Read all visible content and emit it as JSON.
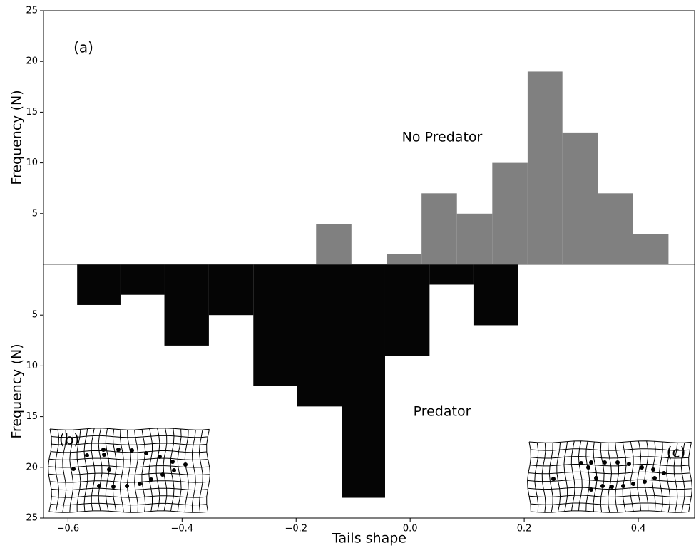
{
  "chart_data": [
    {
      "type": "histogram",
      "ylabel": "Frequency (N)",
      "color": "#808080",
      "bins": [
        -0.165,
        -0.103,
        -0.041,
        0.02,
        0.082,
        0.144,
        0.206,
        0.267,
        0.329,
        0.391,
        0.453
      ],
      "values": [
        4,
        0,
        1,
        7,
        5,
        10,
        19,
        13,
        7,
        3
      ],
      "xlim": [
        -0.643,
        0.5
      ],
      "ylim": [
        0,
        25
      ],
      "yticks": [
        5,
        10,
        15,
        20,
        25
      ],
      "annotations": [
        "(a)",
        "No Predator"
      ]
    },
    {
      "type": "histogram",
      "ylabel": "Frequency (N)",
      "xlabel": "Tails shape",
      "color": "#050505",
      "inverted": true,
      "bins": [
        -0.584,
        -0.508,
        -0.431,
        -0.353,
        -0.275,
        -0.198,
        -0.12,
        -0.044,
        0.034,
        0.111,
        0.189
      ],
      "values": [
        4,
        3,
        8,
        5,
        12,
        14,
        23,
        9,
        2,
        6
      ],
      "xlim": [
        -0.643,
        0.5
      ],
      "ylim": [
        0,
        25
      ],
      "yticks": [
        5,
        10,
        15,
        20,
        25
      ],
      "xticks": [
        {
          "value": -0.6,
          "label": "−0.6"
        },
        {
          "value": -0.4,
          "label": "−0.4"
        },
        {
          "value": -0.2,
          "label": "−0.2"
        },
        {
          "value": 0,
          "label": "0.0"
        },
        0.2,
        0.4
      ],
      "annotations": [
        "Predator",
        "(b)",
        "(c)"
      ]
    }
  ]
}
